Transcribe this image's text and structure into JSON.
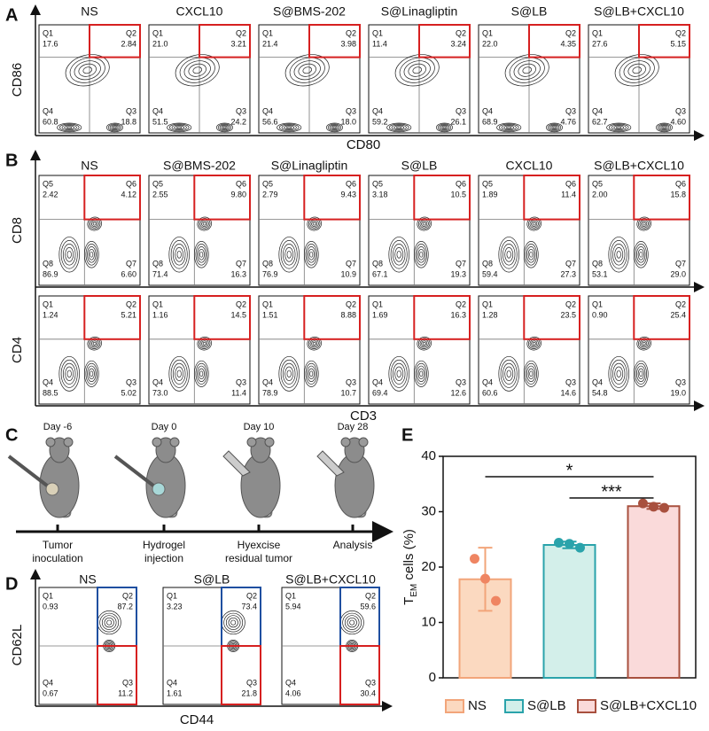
{
  "panel_a": {
    "label": "A",
    "y_label": "CD86",
    "x_label": "CD80",
    "plots": [
      {
        "title": "NS",
        "quadrants": [
          [
            "Q1",
            "17.6"
          ],
          [
            "Q2",
            "2.84"
          ],
          [
            "Q4",
            "60.8"
          ],
          [
            "Q3",
            "18.8"
          ]
        ]
      },
      {
        "title": "CXCL10",
        "quadrants": [
          [
            "Q1",
            "21.0"
          ],
          [
            "Q2",
            "3.21"
          ],
          [
            "Q4",
            "51.5"
          ],
          [
            "Q3",
            "24.2"
          ]
        ]
      },
      {
        "title": "S@BMS-202",
        "quadrants": [
          [
            "Q1",
            "21.4"
          ],
          [
            "Q2",
            "3.98"
          ],
          [
            "Q4",
            "56.6"
          ],
          [
            "Q3",
            "18.0"
          ]
        ]
      },
      {
        "title": "S@Linagliptin",
        "quadrants": [
          [
            "Q1",
            "11.4"
          ],
          [
            "Q2",
            "3.24"
          ],
          [
            "Q4",
            "59.2"
          ],
          [
            "Q3",
            "26.1"
          ]
        ]
      },
      {
        "title": "S@LB",
        "quadrants": [
          [
            "Q1",
            "22.0"
          ],
          [
            "Q2",
            "4.35"
          ],
          [
            "Q4",
            "68.9"
          ],
          [
            "Q3",
            "4.76"
          ]
        ]
      },
      {
        "title": "S@LB+CXCL10",
        "quadrants": [
          [
            "Q1",
            "27.6"
          ],
          [
            "Q2",
            "5.15"
          ],
          [
            "Q4",
            "62.7"
          ],
          [
            "Q3",
            "4.60"
          ]
        ]
      }
    ]
  },
  "panel_b": {
    "label": "B",
    "x_label": "CD3",
    "rows": [
      {
        "y_label": "CD8",
        "plots": [
          {
            "title": "NS",
            "quadrants": [
              [
                "Q5",
                "2.42"
              ],
              [
                "Q6",
                "4.12"
              ],
              [
                "Q8",
                "86.9"
              ],
              [
                "Q7",
                "6.60"
              ]
            ]
          },
          {
            "title": "S@BMS-202",
            "quadrants": [
              [
                "Q5",
                "2.55"
              ],
              [
                "Q6",
                "9.80"
              ],
              [
                "Q8",
                "71.4"
              ],
              [
                "Q7",
                "16.3"
              ]
            ]
          },
          {
            "title": "S@Linagliptin",
            "quadrants": [
              [
                "Q5",
                "2.79"
              ],
              [
                "Q6",
                "9.43"
              ],
              [
                "Q8",
                "76.9"
              ],
              [
                "Q7",
                "10.9"
              ]
            ]
          },
          {
            "title": "S@LB",
            "quadrants": [
              [
                "Q5",
                "3.18"
              ],
              [
                "Q6",
                "10.5"
              ],
              [
                "Q8",
                "67.1"
              ],
              [
                "Q7",
                "19.3"
              ]
            ]
          },
          {
            "title": "CXCL10",
            "quadrants": [
              [
                "Q5",
                "1.89"
              ],
              [
                "Q6",
                "11.4"
              ],
              [
                "Q8",
                "59.4"
              ],
              [
                "Q7",
                "27.3"
              ]
            ]
          },
          {
            "title": "S@LB+CXCL10",
            "quadrants": [
              [
                "Q5",
                "2.00"
              ],
              [
                "Q6",
                "15.8"
              ],
              [
                "Q8",
                "53.1"
              ],
              [
                "Q7",
                "29.0"
              ]
            ]
          }
        ]
      },
      {
        "y_label": "CD4",
        "plots": [
          {
            "quadrants": [
              [
                "Q1",
                "1.24"
              ],
              [
                "Q2",
                "5.21"
              ],
              [
                "Q4",
                "88.5"
              ],
              [
                "Q3",
                "5.02"
              ]
            ]
          },
          {
            "quadrants": [
              [
                "Q1",
                "1.16"
              ],
              [
                "Q2",
                "14.5"
              ],
              [
                "Q4",
                "73.0"
              ],
              [
                "Q3",
                "11.4"
              ]
            ]
          },
          {
            "quadrants": [
              [
                "Q1",
                "1.51"
              ],
              [
                "Q2",
                "8.88"
              ],
              [
                "Q4",
                "78.9"
              ],
              [
                "Q3",
                "10.7"
              ]
            ]
          },
          {
            "quadrants": [
              [
                "Q1",
                "1.69"
              ],
              [
                "Q2",
                "16.3"
              ],
              [
                "Q4",
                "69.4"
              ],
              [
                "Q3",
                "12.6"
              ]
            ]
          },
          {
            "quadrants": [
              [
                "Q1",
                "1.28"
              ],
              [
                "Q2",
                "23.5"
              ],
              [
                "Q4",
                "60.6"
              ],
              [
                "Q3",
                "14.6"
              ]
            ]
          },
          {
            "quadrants": [
              [
                "Q1",
                "0.90"
              ],
              [
                "Q2",
                "25.4"
              ],
              [
                "Q4",
                "54.8"
              ],
              [
                "Q3",
                "19.0"
              ]
            ]
          }
        ]
      }
    ]
  },
  "panel_c": {
    "label": "C",
    "steps": [
      {
        "day": "Day -6",
        "lines": [
          "Tumor",
          "inoculation"
        ]
      },
      {
        "day": "Day 0",
        "lines": [
          "Hydrogel",
          "injection"
        ]
      },
      {
        "day": "Day 10",
        "lines": [
          "Hyexcise",
          "residual tumor"
        ]
      },
      {
        "day": "Day 28",
        "lines": [
          "Analysis"
        ]
      }
    ]
  },
  "panel_d": {
    "label": "D",
    "y_label": "CD62L",
    "x_label": "CD44",
    "plots": [
      {
        "title": "NS",
        "quadrants": [
          [
            "Q1",
            "0.93"
          ],
          [
            "Q2",
            "87.2"
          ],
          [
            "Q4",
            "0.67"
          ],
          [
            "Q3",
            "11.2"
          ]
        ]
      },
      {
        "title": "S@LB",
        "quadrants": [
          [
            "Q1",
            "3.23"
          ],
          [
            "Q2",
            "73.4"
          ],
          [
            "Q4",
            "1.61"
          ],
          [
            "Q3",
            "21.8"
          ]
        ]
      },
      {
        "title": "S@LB+CXCL10",
        "quadrants": [
          [
            "Q1",
            "5.94"
          ],
          [
            "Q2",
            "59.6"
          ],
          [
            "Q4",
            "4.06"
          ],
          [
            "Q3",
            "30.4"
          ]
        ]
      }
    ]
  },
  "chart_data": {
    "type": "bar",
    "label": "E",
    "ylabel": [
      "T",
      "EM",
      " cells (%)"
    ],
    "categories": [
      "NS",
      "S@LB",
      "S@LB+CXCL10"
    ],
    "values": [
      17.8,
      24.0,
      31.0
    ],
    "errors": [
      5.7,
      0.6,
      0.5
    ],
    "points": [
      [
        21.5,
        17.9,
        13.9
      ],
      [
        24.4,
        24.2,
        23.5
      ],
      [
        31.5,
        30.9,
        30.7
      ]
    ],
    "colors": [
      "#fbd9c0",
      "#d3efea",
      "#fadada"
    ],
    "edge_colors": [
      "#f2a57a",
      "#2aa3ab",
      "#a8503e"
    ],
    "point_colors": [
      "#ef8562",
      "#2aa3ab",
      "#a8503e"
    ],
    "ylim": [
      0,
      40
    ],
    "yticks": [
      0,
      10,
      20,
      30,
      40
    ],
    "annotations": [
      {
        "text": "*",
        "between": [
          "NS",
          "S@LB+CXCL10"
        ]
      },
      {
        "text": "***",
        "between": [
          "S@LB",
          "S@LB+CXCL10"
        ]
      }
    ]
  }
}
